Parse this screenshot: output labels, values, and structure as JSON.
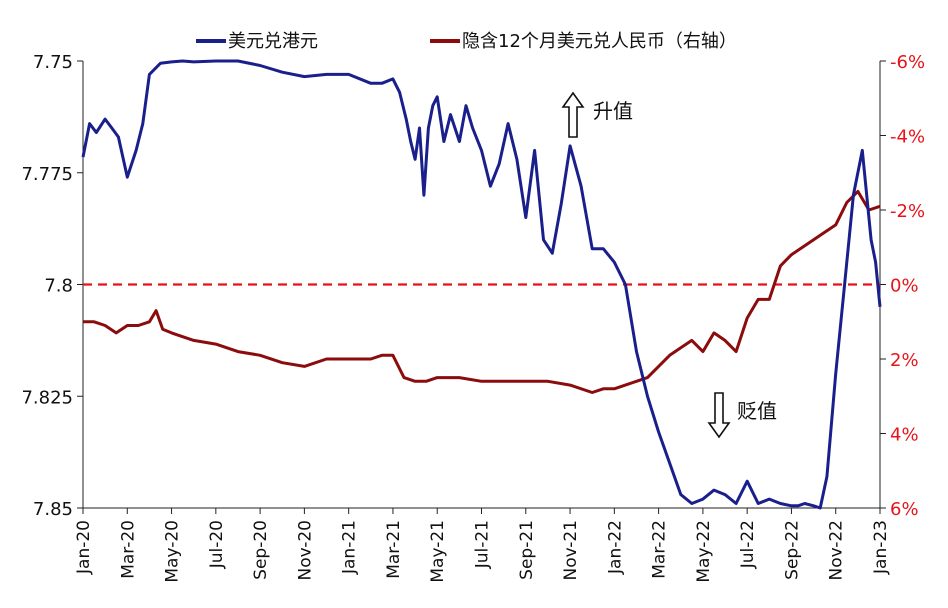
{
  "chart_data": {
    "type": "line",
    "title": "",
    "x_ticks": [
      "Jan-20",
      "Mar-20",
      "May-20",
      "Jul-20",
      "Sep-20",
      "Nov-20",
      "Jan-21",
      "Mar-21",
      "May-21",
      "Jul-21",
      "Sep-21",
      "Nov-21",
      "Jan-22",
      "Mar-22",
      "May-22",
      "Jul-22",
      "Sep-22",
      "Nov-22",
      "Jan-23"
    ],
    "y_left": {
      "ticks": [
        "7.75",
        "7.775",
        "7.8",
        "7.825",
        "7.85"
      ],
      "range": [
        7.75,
        7.85
      ],
      "inverted": true
    },
    "y_right": {
      "ticks": [
        "-6%",
        "-4%",
        "-2%",
        "0%",
        "2%",
        "4%",
        "6%"
      ],
      "range": [
        -6,
        6
      ],
      "inverted": true,
      "color": "#e8131a"
    },
    "reference_line": {
      "axis": "right",
      "value": 0,
      "style": "dashed",
      "color": "#e8131a"
    },
    "series": [
      {
        "name": "美元兑港元",
        "axis": "left",
        "color": "#1a1f8c",
        "x": [
          0,
          0.3,
          0.6,
          1.0,
          1.3,
          1.6,
          2.0,
          2.4,
          2.7,
          3.0,
          3.5,
          4.0,
          4.5,
          5.0,
          6.0,
          7.0,
          8.0,
          9.0,
          10.0,
          11.0,
          12.0,
          13.0,
          13.5,
          14.0,
          14.3,
          14.6,
          14.8,
          15.0,
          15.2,
          15.4,
          15.6,
          15.8,
          16.0,
          16.3,
          16.6,
          17.0,
          17.3,
          17.6,
          18.0,
          18.4,
          18.8,
          19.2,
          19.6,
          20.0,
          20.4,
          20.8,
          21.2,
          21.6,
          22.0,
          22.5,
          23.0,
          23.5,
          24.0,
          24.5,
          25.0,
          25.5,
          26.0,
          26.5,
          27.0,
          27.5,
          28.0,
          28.5,
          29.0,
          29.5,
          30.0,
          30.5,
          31.0,
          31.5,
          32.0,
          32.3,
          32.6,
          33.0,
          33.3,
          33.6,
          34.0,
          34.4,
          34.8,
          35.2,
          35.6,
          35.8,
          36.0
        ],
        "values": [
          7.7715,
          7.764,
          7.766,
          7.763,
          7.765,
          7.767,
          7.776,
          7.77,
          7.764,
          7.753,
          7.7505,
          7.7502,
          7.75,
          7.7502,
          7.75,
          7.75,
          7.751,
          7.7525,
          7.7535,
          7.753,
          7.753,
          7.755,
          7.755,
          7.754,
          7.757,
          7.763,
          7.768,
          7.772,
          7.765,
          7.78,
          7.765,
          7.76,
          7.758,
          7.768,
          7.762,
          7.768,
          7.76,
          7.765,
          7.77,
          7.778,
          7.773,
          7.764,
          7.772,
          7.785,
          7.77,
          7.79,
          7.793,
          7.782,
          7.769,
          7.778,
          7.792,
          7.792,
          7.795,
          7.8,
          7.815,
          7.825,
          7.833,
          7.84,
          7.847,
          7.849,
          7.848,
          7.846,
          7.847,
          7.849,
          7.844,
          7.849,
          7.848,
          7.849,
          7.8495,
          7.8495,
          7.849,
          7.8495,
          7.85,
          7.843,
          7.82,
          7.8,
          7.78,
          7.77,
          7.79,
          7.795,
          7.805
        ]
      },
      {
        "name": "隐含12个月美元兑人民币（右轴）",
        "axis": "right",
        "color": "#8b0c0c",
        "x": [
          0,
          0.5,
          1.0,
          1.5,
          2.0,
          2.5,
          3.0,
          3.3,
          3.6,
          4.0,
          4.5,
          5.0,
          6.0,
          7.0,
          8.0,
          9.0,
          10.0,
          11.0,
          12.0,
          13.0,
          13.5,
          14.0,
          14.5,
          15.0,
          15.5,
          16.0,
          16.5,
          17.0,
          18.0,
          19.0,
          20.0,
          21.0,
          22.0,
          23.0,
          23.5,
          24.0,
          24.5,
          25.0,
          25.5,
          26.0,
          26.5,
          27.0,
          27.5,
          28.0,
          28.5,
          29.0,
          29.5,
          30.0,
          30.5,
          31.0,
          31.5,
          32.0,
          32.5,
          33.0,
          33.5,
          34.0,
          34.5,
          35.0,
          35.5,
          36.0
        ],
        "values": [
          1.0,
          1.0,
          1.1,
          1.3,
          1.1,
          1.1,
          1.0,
          0.7,
          1.2,
          1.3,
          1.4,
          1.5,
          1.6,
          1.8,
          1.9,
          2.1,
          2.2,
          2.0,
          2.0,
          2.0,
          1.9,
          1.9,
          2.5,
          2.6,
          2.6,
          2.5,
          2.5,
          2.5,
          2.6,
          2.6,
          2.6,
          2.6,
          2.7,
          2.9,
          2.8,
          2.8,
          2.7,
          2.6,
          2.5,
          2.2,
          1.9,
          1.7,
          1.5,
          1.8,
          1.3,
          1.5,
          1.8,
          0.9,
          0.4,
          0.4,
          -0.5,
          -0.8,
          -1.0,
          -1.2,
          -1.4,
          -1.6,
          -2.2,
          -2.5,
          -2.0,
          -2.1
        ]
      }
    ],
    "annotations": [
      {
        "text": "升值",
        "arrow": "up"
      },
      {
        "text": "贬值",
        "arrow": "down"
      }
    ],
    "legend_position": "top",
    "grid": false
  }
}
